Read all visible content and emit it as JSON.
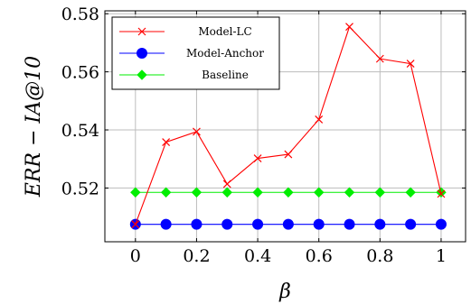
{
  "chart_data": {
    "type": "line",
    "x": [
      0,
      0.1,
      0.2,
      0.3,
      0.4,
      0.5,
      0.6,
      0.7,
      0.8,
      0.9,
      1.0
    ],
    "series": [
      {
        "name": "Model-LC",
        "color": "#ff0000",
        "marker": "cross",
        "values": [
          0.5075,
          0.5358,
          0.5394,
          0.5214,
          0.5302,
          0.5316,
          0.5436,
          0.5755,
          0.5645,
          0.5628,
          0.518
        ]
      },
      {
        "name": "Model-Anchor",
        "color": "#0000ff",
        "marker": "circle",
        "values": [
          0.5075,
          0.5075,
          0.5075,
          0.5075,
          0.5075,
          0.5075,
          0.5075,
          0.5075,
          0.5075,
          0.5075,
          0.5075
        ]
      },
      {
        "name": "Baseline",
        "color": "#00ee00",
        "marker": "diamond",
        "values": [
          0.5185,
          0.5185,
          0.5185,
          0.5185,
          0.5185,
          0.5185,
          0.5185,
          0.5185,
          0.5185,
          0.5185,
          0.5185
        ]
      }
    ],
    "xlabel": "β",
    "ylabel": "ERR − IA@10",
    "xlim": [
      -0.1,
      1.08
    ],
    "ylim": [
      0.5015,
      0.581
    ],
    "xticks": [
      0,
      0.2,
      0.4,
      0.6,
      0.8,
      1
    ],
    "xtick_labels": [
      "0",
      "0.2",
      "0.4",
      "0.6",
      "0.8",
      "1"
    ],
    "yticks": [
      0.52,
      0.54,
      0.56,
      0.58
    ],
    "ytick_labels": [
      "0.52",
      "0.54",
      "0.56",
      "0.58"
    ],
    "grid": true,
    "legend_position": "top-left"
  }
}
